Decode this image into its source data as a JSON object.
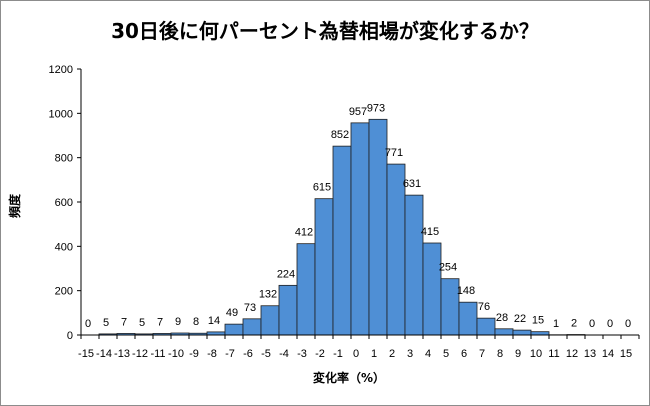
{
  "chart_data": {
    "type": "bar",
    "title": "30日後に何パーセント為替相場が変化するか？",
    "xlabel": "変化率（%）",
    "ylabel": "頻度",
    "ylim": [
      0,
      1200
    ],
    "yticks": [
      0,
      200,
      400,
      600,
      800,
      1000,
      1200
    ],
    "grid": false,
    "legend": "none",
    "categories": [
      "-15",
      "-14",
      "-13",
      "-12",
      "-11",
      "-10",
      "-9",
      "-8",
      "-7",
      "-6",
      "-5",
      "-4",
      "-3",
      "-2",
      "-1",
      "0",
      "1",
      "2",
      "3",
      "4",
      "5",
      "6",
      "7",
      "8",
      "9",
      "10",
      "11",
      "12",
      "13",
      "14",
      "15"
    ],
    "values": [
      0,
      5,
      7,
      5,
      7,
      9,
      8,
      14,
      49,
      73,
      132,
      224,
      412,
      615,
      852,
      957,
      973,
      771,
      631,
      415,
      254,
      148,
      76,
      28,
      22,
      15,
      1,
      2,
      0,
      0,
      0
    ],
    "colors": {
      "bar_fill": "#4f8fd5",
      "bar_stroke": "#1f1f1f"
    }
  }
}
